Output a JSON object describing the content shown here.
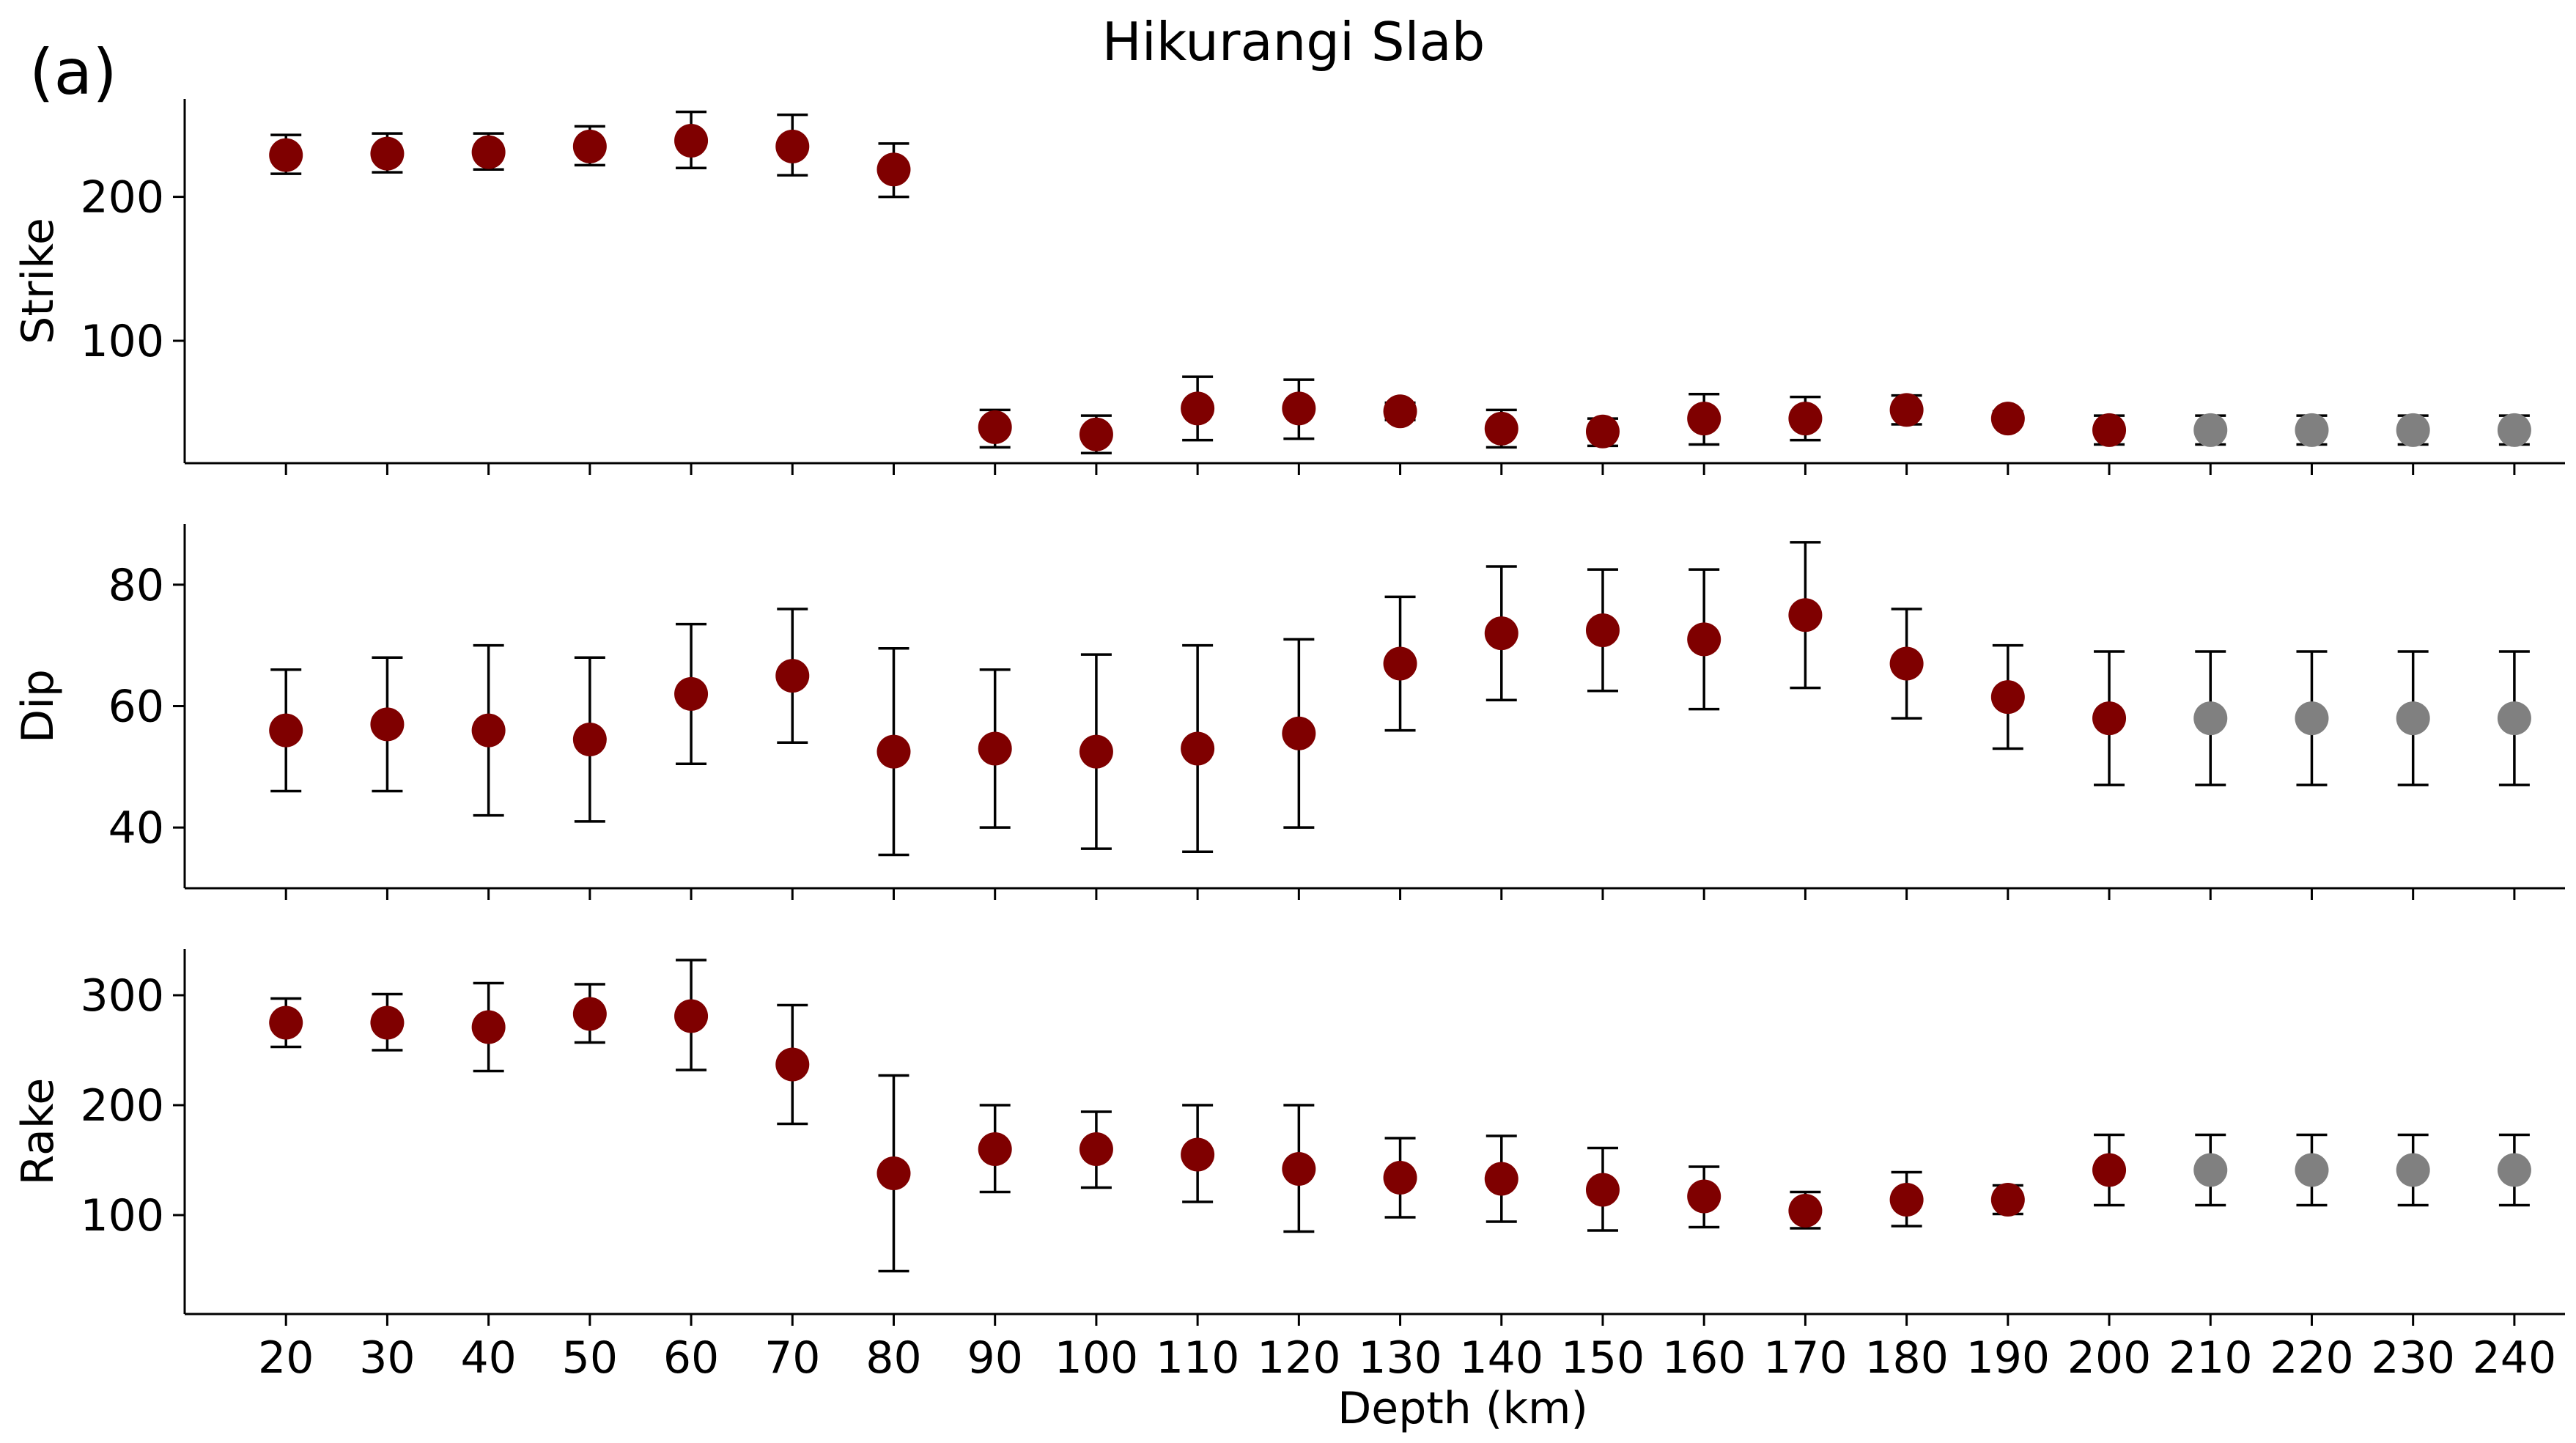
{
  "panel_letter": "(a)",
  "colors": {
    "primary_marker": "#7f0000",
    "extrapolated_marker": "#808080",
    "error_bar": "#000000",
    "axis": "#000000"
  },
  "chart_data": [
    {
      "type": "scatter",
      "title": "Hikurangi Slab",
      "ylabel": "Strike",
      "xlabel": "",
      "x": [
        20,
        30,
        40,
        50,
        60,
        70,
        80,
        90,
        100,
        110,
        120,
        130,
        140,
        150,
        160,
        170,
        180,
        190,
        200,
        210,
        220,
        230,
        240
      ],
      "y": [
        229,
        230,
        231,
        235,
        239,
        235,
        219,
        40,
        35,
        53,
        53,
        51,
        39,
        37,
        46,
        46,
        52,
        46,
        38,
        38,
        38,
        38,
        38
      ],
      "y_lower": [
        216,
        217,
        219,
        222,
        220,
        215,
        200,
        26,
        22,
        31,
        32,
        45,
        26,
        27,
        28,
        31,
        42,
        42,
        28,
        28,
        28,
        28,
        28
      ],
      "y_upper": [
        243,
        244,
        244,
        249,
        259,
        257,
        237,
        52,
        48,
        75,
        73,
        57,
        52,
        46,
        63,
        61,
        62,
        51,
        48,
        48,
        48,
        48,
        48
      ],
      "marker_color": [
        "primary",
        "primary",
        "primary",
        "primary",
        "primary",
        "primary",
        "primary",
        "primary",
        "primary",
        "primary",
        "primary",
        "primary",
        "primary",
        "primary",
        "primary",
        "primary",
        "primary",
        "primary",
        "primary",
        "extrapolated",
        "extrapolated",
        "extrapolated",
        "extrapolated"
      ],
      "yticks": [
        100,
        200
      ],
      "ylim": [
        15,
        268
      ],
      "xlim": [
        10,
        245
      ],
      "show_xtick_labels": false
    },
    {
      "type": "scatter",
      "ylabel": "Dip",
      "xlabel": "",
      "x": [
        20,
        30,
        40,
        50,
        60,
        70,
        80,
        90,
        100,
        110,
        120,
        130,
        140,
        150,
        160,
        170,
        180,
        190,
        200,
        210,
        220,
        230,
        240
      ],
      "y": [
        56,
        57,
        56,
        54.5,
        62,
        65,
        52.5,
        53,
        52.5,
        53,
        55.5,
        67,
        72,
        72.5,
        71,
        75,
        67,
        61.5,
        58,
        58,
        58,
        58,
        58
      ],
      "y_lower": [
        46,
        46,
        42,
        41,
        50.5,
        54,
        35.5,
        40,
        36.5,
        36,
        40,
        56,
        61,
        62.5,
        59.5,
        63,
        58,
        53,
        47,
        47,
        47,
        47,
        47
      ],
      "y_upper": [
        66,
        68,
        70,
        68,
        73.5,
        76,
        69.5,
        66,
        68.5,
        70,
        71,
        78,
        83,
        82.5,
        82.5,
        87,
        76,
        70,
        69,
        69,
        69,
        69,
        69
      ],
      "marker_color": [
        "primary",
        "primary",
        "primary",
        "primary",
        "primary",
        "primary",
        "primary",
        "primary",
        "primary",
        "primary",
        "primary",
        "primary",
        "primary",
        "primary",
        "primary",
        "primary",
        "primary",
        "primary",
        "primary",
        "extrapolated",
        "extrapolated",
        "extrapolated",
        "extrapolated"
      ],
      "yticks": [
        40,
        60,
        80
      ],
      "ylim": [
        30,
        90
      ],
      "xlim": [
        10,
        245
      ],
      "show_xtick_labels": false
    },
    {
      "type": "scatter",
      "ylabel": "Rake",
      "xlabel": "Depth (km)",
      "x": [
        20,
        30,
        40,
        50,
        60,
        70,
        80,
        90,
        100,
        110,
        120,
        130,
        140,
        150,
        160,
        170,
        180,
        190,
        200,
        210,
        220,
        230,
        240
      ],
      "y": [
        275,
        275,
        271,
        283,
        281,
        237,
        138,
        160,
        160,
        155,
        142,
        134,
        133,
        123,
        117,
        104,
        114,
        114,
        141,
        141,
        141,
        141,
        141
      ],
      "y_lower": [
        253,
        250,
        231,
        257,
        232,
        183,
        49,
        121,
        125,
        112,
        85,
        98,
        94,
        86,
        89,
        88,
        90,
        101,
        109,
        109,
        109,
        109,
        109
      ],
      "y_upper": [
        297,
        301,
        311,
        310,
        332,
        291,
        227,
        200,
        194,
        200,
        200,
        170,
        172,
        161,
        144,
        121,
        139,
        127,
        173,
        173,
        173,
        173,
        173
      ],
      "marker_color": [
        "primary",
        "primary",
        "primary",
        "primary",
        "primary",
        "primary",
        "primary",
        "primary",
        "primary",
        "primary",
        "primary",
        "primary",
        "primary",
        "primary",
        "primary",
        "primary",
        "primary",
        "primary",
        "primary",
        "extrapolated",
        "extrapolated",
        "extrapolated",
        "extrapolated"
      ],
      "yticks": [
        100,
        200,
        300
      ],
      "ylim": [
        10,
        342
      ],
      "xlim": [
        10,
        245
      ],
      "show_xtick_labels": true,
      "xticks": [
        20,
        30,
        40,
        50,
        60,
        70,
        80,
        90,
        100,
        110,
        120,
        130,
        140,
        150,
        160,
        170,
        180,
        190,
        200,
        210,
        220,
        230,
        240
      ]
    }
  ]
}
